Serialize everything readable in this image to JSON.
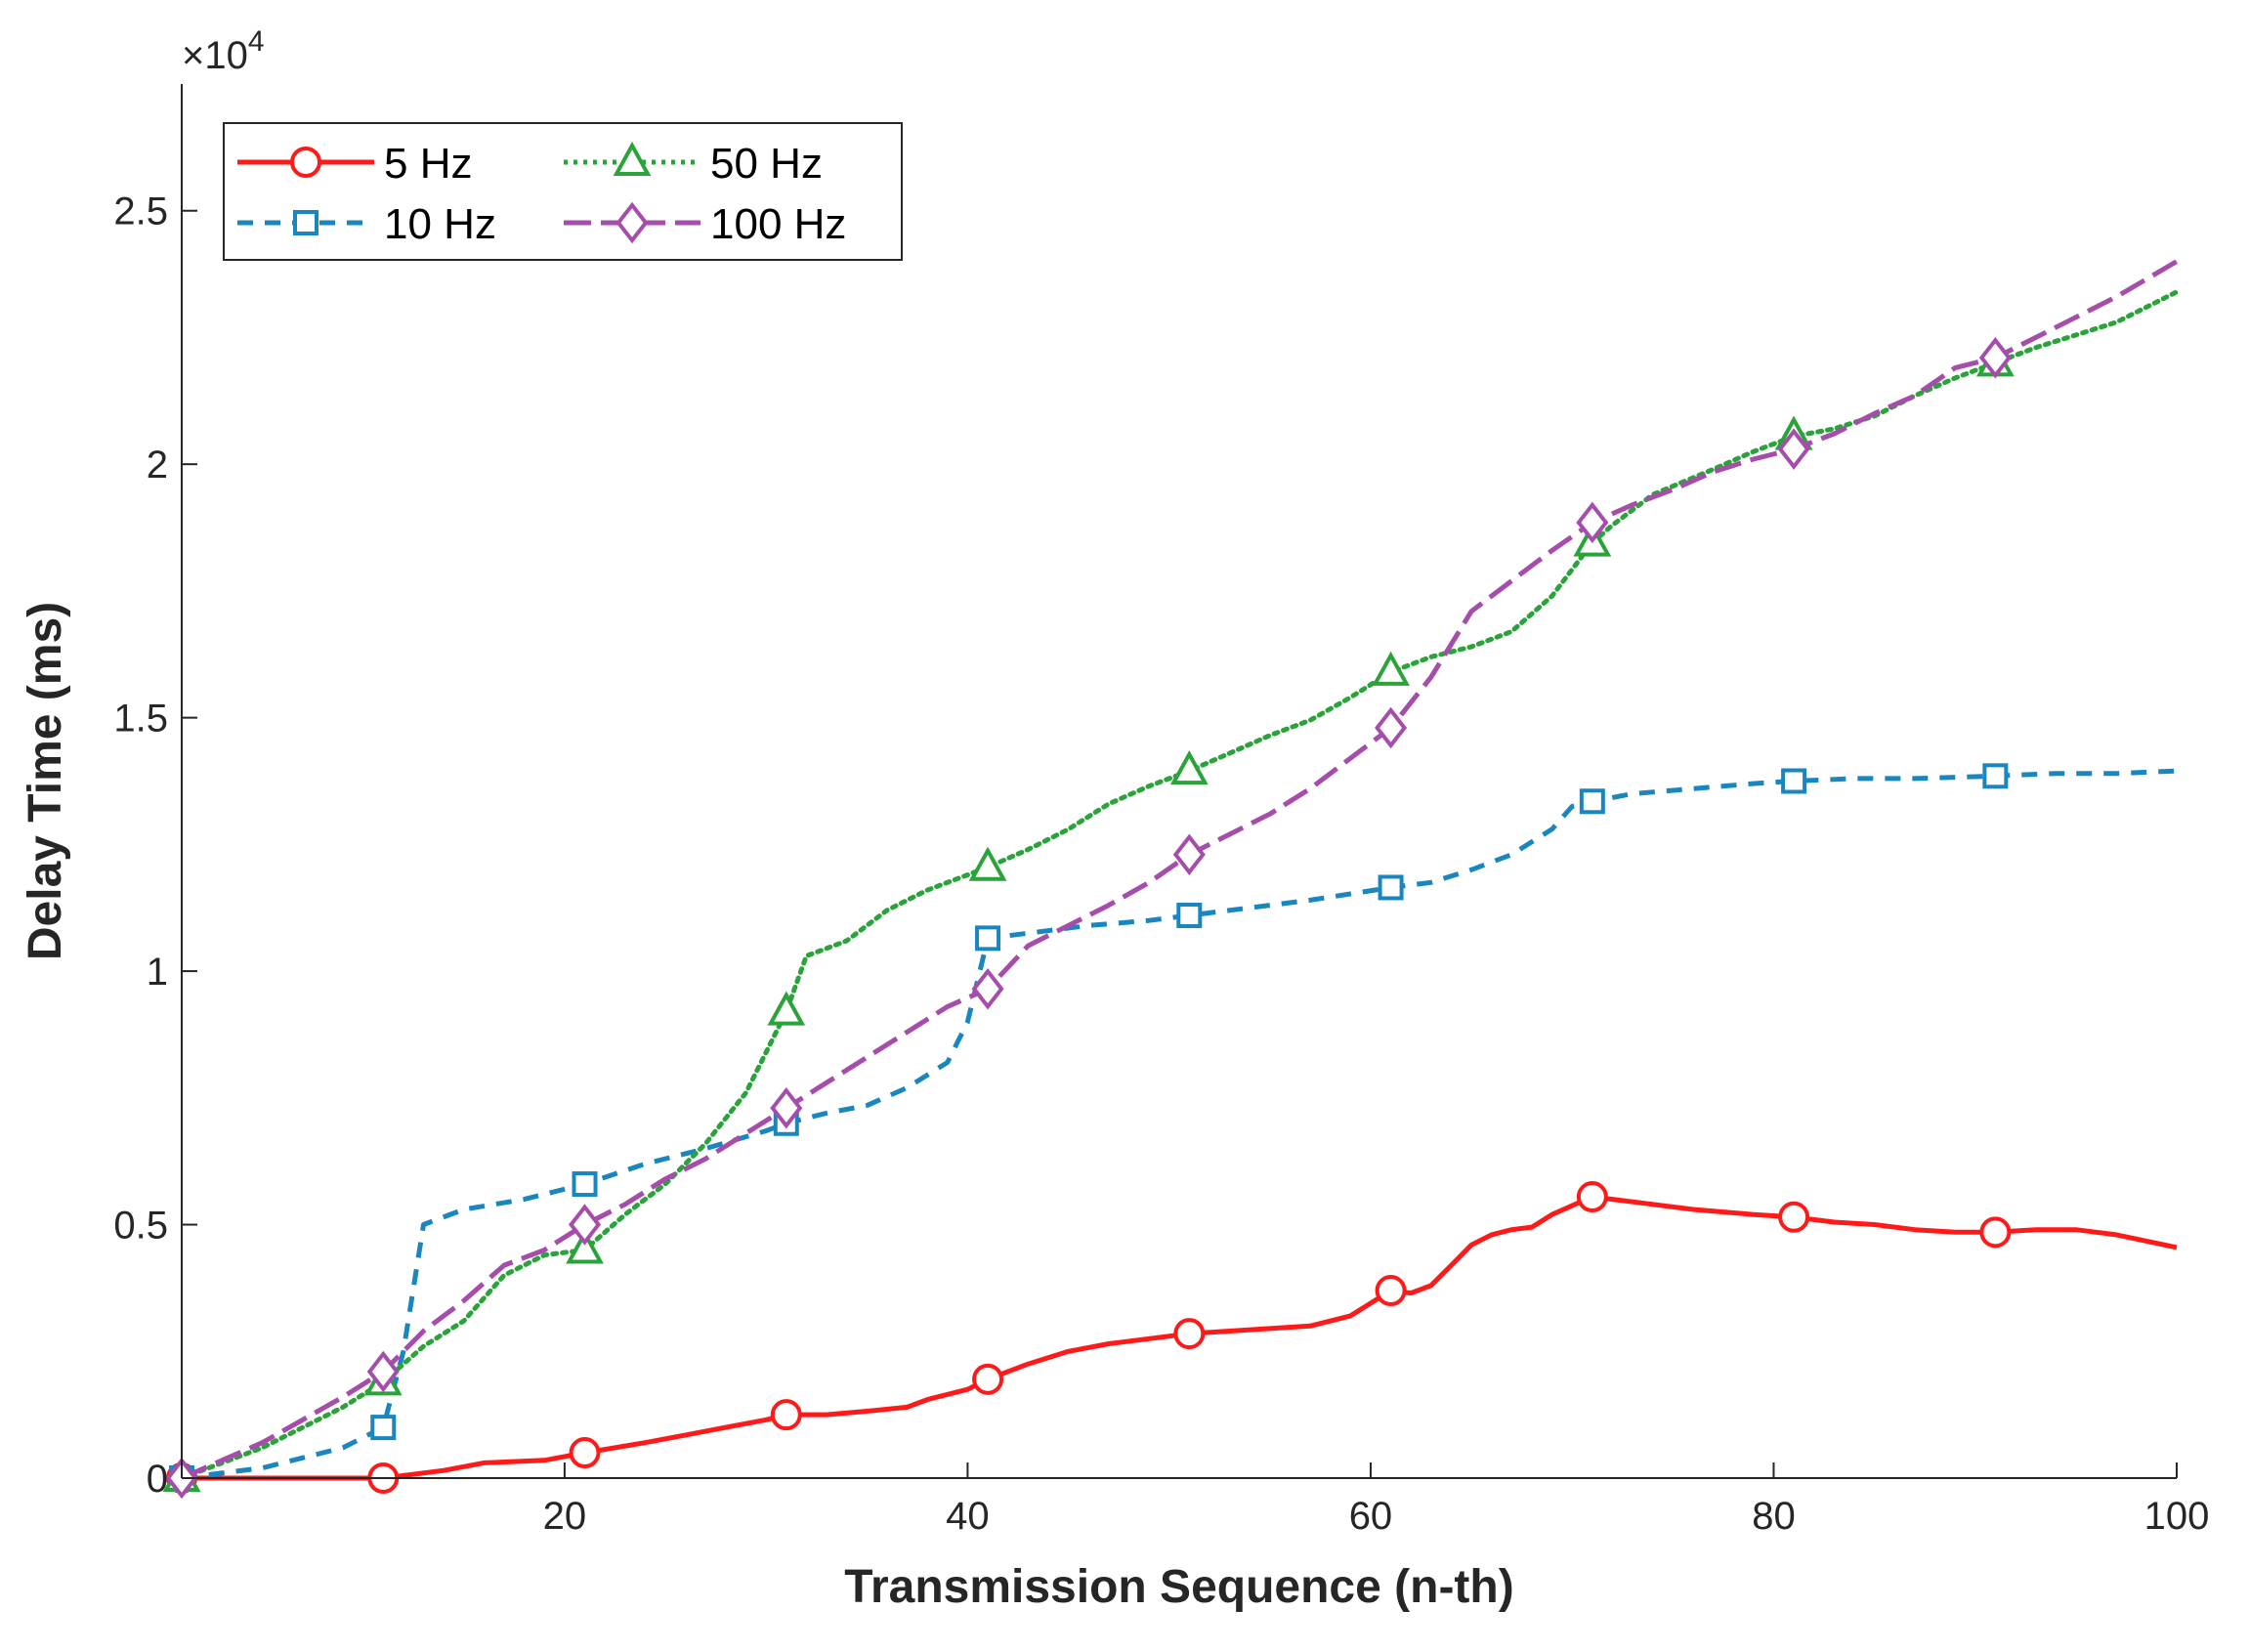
{
  "chart_data": {
    "type": "line",
    "title": "",
    "xlabel": "Transmission Sequence (n-th)",
    "ylabel": "Delay Time (ms)",
    "xlim": [
      1,
      100
    ],
    "ylim": [
      0,
      27500
    ],
    "y_exponent_label": "×10",
    "y_exponent_power": "4",
    "x_ticks": [
      20,
      40,
      60,
      80,
      100
    ],
    "x_tick_labels": [
      "20",
      "40",
      "60",
      "80",
      "100"
    ],
    "y_ticks": [
      0,
      5000,
      10000,
      15000,
      20000,
      25000
    ],
    "y_tick_labels": [
      "0",
      "0.5",
      "1",
      "1.5",
      "2",
      "2.5"
    ],
    "legend_position": "top-left",
    "series": [
      {
        "name": "5 Hz",
        "color": "#ff1a1a",
        "dash": "solid",
        "marker": "circle",
        "x": [
          1,
          11,
          14,
          16,
          19,
          21,
          24,
          26,
          28,
          30,
          31,
          33,
          35,
          37,
          38,
          40,
          41,
          43,
          45,
          47,
          49,
          51,
          53,
          55,
          57,
          59,
          61,
          62,
          63,
          64,
          65,
          66,
          67,
          68,
          69,
          71,
          73,
          76,
          79,
          81,
          83,
          85,
          87,
          89,
          91,
          93,
          95,
          97,
          100
        ],
        "y": [
          0,
          0,
          150,
          300,
          350,
          500,
          700,
          850,
          1000,
          1150,
          1250,
          1250,
          1320,
          1400,
          1550,
          1750,
          1950,
          2250,
          2500,
          2650,
          2750,
          2850,
          2900,
          2950,
          3000,
          3200,
          3700,
          3650,
          3800,
          4200,
          4600,
          4800,
          4900,
          4950,
          5200,
          5550,
          5450,
          5300,
          5200,
          5150,
          5050,
          5000,
          4900,
          4850,
          4850,
          4900,
          4900,
          4800,
          4550
        ]
      },
      {
        "name": "10 Hz",
        "color": "#1a86c0",
        "dash": "16,12",
        "marker": "square",
        "x": [
          1,
          5,
          9,
          11,
          12,
          13,
          15,
          18,
          21,
          24,
          27,
          30,
          31,
          33,
          35,
          37,
          39,
          40,
          41,
          43,
          46,
          49,
          51,
          54,
          57,
          61,
          63,
          65,
          67,
          69,
          70,
          71,
          73,
          76,
          79,
          81,
          84,
          87,
          91,
          94,
          97,
          100
        ],
        "y": [
          0,
          200,
          600,
          1000,
          2500,
          5000,
          5300,
          5500,
          5800,
          6200,
          6500,
          6850,
          7000,
          7200,
          7350,
          7700,
          8200,
          9000,
          10650,
          10750,
          10900,
          11000,
          11100,
          11250,
          11400,
          11650,
          11750,
          12000,
          12300,
          12800,
          13250,
          13350,
          13500,
          13600,
          13700,
          13750,
          13800,
          13800,
          13850,
          13900,
          13900,
          13950
        ]
      },
      {
        "name": "50 Hz",
        "color": "#2aa33a",
        "dash": "4,6",
        "marker": "triangle",
        "x": [
          1,
          5,
          9,
          11,
          13,
          15,
          17,
          19,
          21,
          23,
          25,
          27,
          29,
          31,
          32,
          34,
          36,
          38,
          41,
          43,
          45,
          47,
          49,
          51,
          53,
          55,
          57,
          59,
          61,
          63,
          65,
          67,
          69,
          71,
          72,
          74,
          77,
          79,
          81,
          83,
          85,
          87,
          89,
          91,
          93,
          95,
          97,
          100
        ],
        "y": [
          0,
          600,
          1400,
          1900,
          2600,
          3100,
          4000,
          4400,
          4500,
          5200,
          5800,
          6600,
          7600,
          9200,
          10300,
          10600,
          11200,
          11600,
          12050,
          12400,
          12800,
          13300,
          13650,
          13950,
          14300,
          14650,
          14950,
          15400,
          15900,
          16200,
          16400,
          16700,
          17400,
          18450,
          18800,
          19400,
          19900,
          20250,
          20550,
          20700,
          20950,
          21350,
          21700,
          22000,
          22300,
          22550,
          22800,
          23400
        ]
      },
      {
        "name": "100 Hz",
        "color": "#a64dac",
        "dash": "28,10",
        "marker": "diamond",
        "x": [
          1,
          5,
          9,
          11,
          13,
          15,
          17,
          19,
          21,
          23,
          25,
          27,
          29,
          31,
          33,
          35,
          37,
          39,
          41,
          43,
          45,
          47,
          49,
          51,
          53,
          55,
          57,
          59,
          61,
          63,
          65,
          67,
          69,
          71,
          73,
          75,
          77,
          79,
          81,
          83,
          85,
          87,
          89,
          91,
          93,
          95,
          97,
          100
        ],
        "y": [
          0,
          700,
          1600,
          2100,
          2900,
          3500,
          4200,
          4500,
          5000,
          5400,
          5900,
          6300,
          6800,
          7300,
          7800,
          8300,
          8800,
          9300,
          9650,
          10500,
          10900,
          11300,
          11750,
          12300,
          12700,
          13100,
          13600,
          14200,
          14800,
          15800,
          17100,
          17700,
          18300,
          18850,
          19200,
          19500,
          19850,
          20100,
          20300,
          20600,
          21000,
          21350,
          21900,
          22100,
          22500,
          22900,
          23300,
          24000
        ]
      }
    ]
  }
}
